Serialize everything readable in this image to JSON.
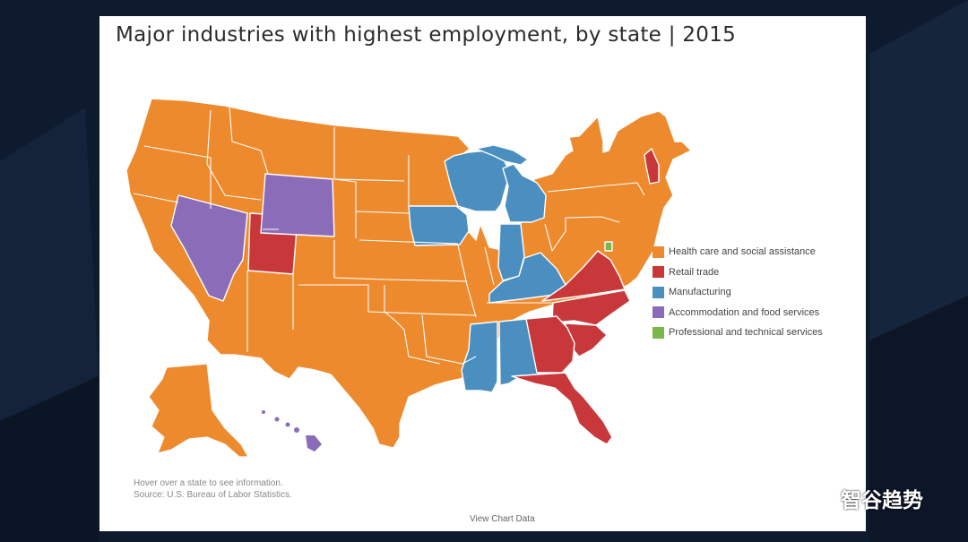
{
  "title": "Major industries with highest employment, by state | 2015",
  "legend": [
    {
      "label": "Health care and social assistance",
      "color": "#ee8a2e"
    },
    {
      "label": "Retail trade",
      "color": "#c8383a"
    },
    {
      "label": "Manufacturing",
      "color": "#4a8fc0"
    },
    {
      "label": "Accommodation and food services",
      "color": "#8b6cb8"
    },
    {
      "label": "Professional and technical services",
      "color": "#7ab648"
    }
  ],
  "notes": {
    "hover_hint": "Hover over a state to see information.",
    "source": "Source: U.S. Bureau of Labor Statistics."
  },
  "view_chart_data": "View Chart Data",
  "watermark": "智谷趋势",
  "states_by_industry": {
    "Retail trade": [
      "Utah",
      "New Hampshire",
      "Virginia",
      "North Carolina",
      "South Carolina",
      "Georgia",
      "Florida"
    ],
    "Manufacturing": [
      "Wisconsin",
      "Michigan",
      "Iowa",
      "Indiana",
      "Kentucky",
      "Mississippi",
      "Alabama"
    ],
    "Accommodation and food services": [
      "Nevada",
      "Wyoming",
      "Hawaii"
    ],
    "Professional and technical services": [
      "District of Columbia"
    ],
    "Health care and social assistance": "all other states"
  }
}
